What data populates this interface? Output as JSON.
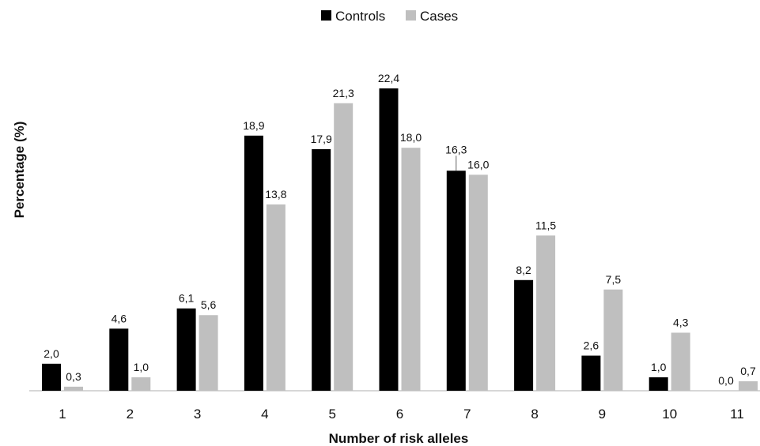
{
  "chart_data": {
    "type": "bar",
    "xlabel": "Number of risk alleles",
    "ylabel": "Percentage (%)",
    "categories": [
      "1",
      "2",
      "3",
      "4",
      "5",
      "6",
      "7",
      "8",
      "9",
      "10",
      "11"
    ],
    "ylim": [
      0,
      25
    ],
    "grid": false,
    "legend_position": "top-center",
    "series": [
      {
        "name": "Controls",
        "color": "#000000",
        "values": [
          2.0,
          4.6,
          6.1,
          18.9,
          17.9,
          22.4,
          16.3,
          8.2,
          2.6,
          1.0,
          0.0
        ],
        "labels": [
          "2,0",
          "4,6",
          "6,1",
          "18,9",
          "17,9",
          "22,4",
          "16,3",
          "8,2",
          "2,6",
          "1,0",
          "0,0"
        ]
      },
      {
        "name": "Cases",
        "color": "#bfbfbf",
        "values": [
          0.3,
          1.0,
          5.6,
          13.8,
          21.3,
          18.0,
          16.0,
          11.5,
          7.5,
          4.3,
          0.7
        ],
        "labels": [
          "0,3",
          "1,0",
          "5,6",
          "13,8",
          "21,3",
          "18,0",
          "16,0",
          "11,5",
          "7,5",
          "4,3",
          "0,7"
        ]
      }
    ]
  }
}
